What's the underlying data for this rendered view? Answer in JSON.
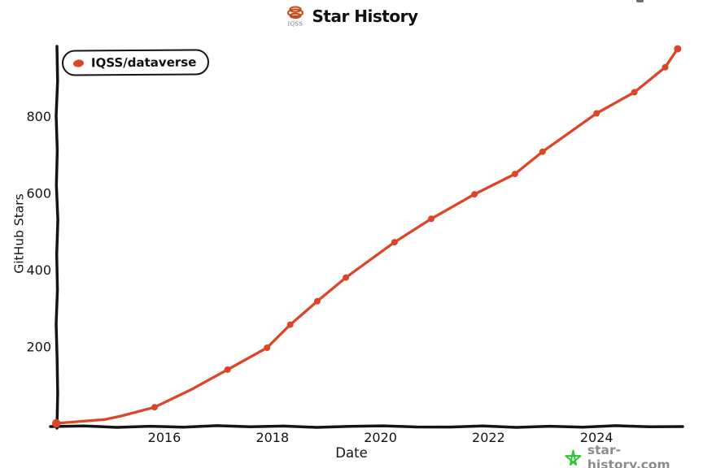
{
  "header": {
    "title": "Star History",
    "logo_label": "IQSS",
    "logo_color": "#c8491e",
    "logo_text_color": "#5a6478"
  },
  "legend": {
    "items": [
      {
        "label": "IQSS/dataverse",
        "color": "#dd4528"
      }
    ]
  },
  "watermark": {
    "label": "star-history.com",
    "star_color": "#2bc52b",
    "text_color": "#8c8c8c"
  },
  "chart_data": {
    "type": "line",
    "title": "Star History",
    "xlabel": "Date",
    "ylabel": "GitHub Stars",
    "x_ticks": [
      2016,
      2018,
      2020,
      2022,
      2024
    ],
    "y_ticks": [
      200,
      400,
      600,
      800
    ],
    "xlim": [
      2013.9,
      2025.6
    ],
    "ylim": [
      0,
      1000
    ],
    "grid": false,
    "legend_position": "top-left",
    "axis_color": "#141414",
    "line_color": "#dd4528",
    "series": [
      {
        "name": "IQSS/dataverse",
        "points": [
          {
            "x": 2014.0,
            "y": 0,
            "m": 1
          },
          {
            "x": 2014.9,
            "y": 10,
            "m": 0
          },
          {
            "x": 2015.2,
            "y": 19,
            "m": 0
          },
          {
            "x": 2015.82,
            "y": 42,
            "m": 1
          },
          {
            "x": 2016.5,
            "y": 88,
            "m": 0
          },
          {
            "x": 2017.17,
            "y": 140,
            "m": 1
          },
          {
            "x": 2017.9,
            "y": 197,
            "m": 1
          },
          {
            "x": 2018.33,
            "y": 257,
            "m": 1
          },
          {
            "x": 2018.83,
            "y": 318,
            "m": 1
          },
          {
            "x": 2019.36,
            "y": 380,
            "m": 1
          },
          {
            "x": 2019.8,
            "y": 425,
            "m": 0
          },
          {
            "x": 2020.26,
            "y": 472,
            "m": 1
          },
          {
            "x": 2020.94,
            "y": 533,
            "m": 1
          },
          {
            "x": 2021.74,
            "y": 597,
            "m": 1
          },
          {
            "x": 2022.49,
            "y": 650,
            "m": 1
          },
          {
            "x": 2023.0,
            "y": 708,
            "m": 1
          },
          {
            "x": 2024.0,
            "y": 808,
            "m": 1
          },
          {
            "x": 2024.7,
            "y": 863,
            "m": 1
          },
          {
            "x": 2025.27,
            "y": 928,
            "m": 1
          },
          {
            "x": 2025.5,
            "y": 976,
            "m": 1
          }
        ]
      }
    ]
  }
}
